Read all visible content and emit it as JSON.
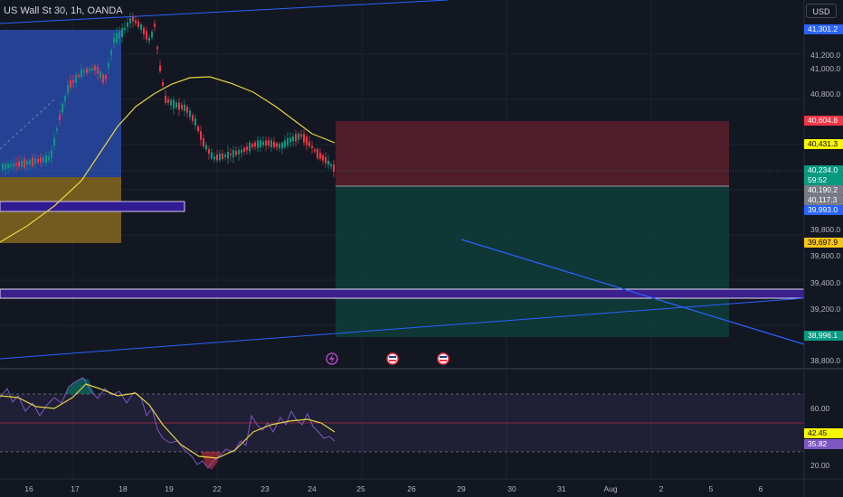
{
  "symbol": {
    "title": "US Wall St 30, 1h, OANDA"
  },
  "currency": {
    "label": "USD"
  },
  "price_axis": {
    "ticks": [
      "41,200.0",
      "41,000.0",
      "40,800.0",
      "39,800.0",
      "39,600.0",
      "39,400.0",
      "39,200.0",
      "38,800.0"
    ],
    "tags": [
      {
        "text": "41,301.2",
        "bg": "#2962ff",
        "fg": "#ffffff"
      },
      {
        "text": "40,604.8",
        "bg": "#f23645",
        "fg": "#ffffff"
      },
      {
        "text": "40,431.3",
        "bg": "#f7f700",
        "fg": "#000000"
      },
      {
        "text": "40,234.0",
        "bg": "#089981",
        "fg": "#ffffff"
      },
      {
        "text": "59:52",
        "bg": "#089981",
        "fg": "#ffffff"
      },
      {
        "text": "40,190.2",
        "bg": "#787b86",
        "fg": "#ffffff"
      },
      {
        "text": "40,117.3",
        "bg": "#787b86",
        "fg": "#ffffff"
      },
      {
        "text": "39,993.0",
        "bg": "#2962ff",
        "fg": "#ffffff"
      },
      {
        "text": "39,697.9",
        "bg": "#f5c518",
        "fg": "#000000"
      },
      {
        "text": "38,996.1",
        "bg": "#089981",
        "fg": "#ffffff"
      }
    ]
  },
  "rsi_axis": {
    "ticks": [
      "60.00",
      "20.00"
    ],
    "tags": [
      {
        "text": "42.45",
        "bg": "#f7f700",
        "fg": "#000000"
      },
      {
        "text": "35.82",
        "bg": "#7e57c2",
        "fg": "#ffffff"
      }
    ]
  },
  "time_axis": {
    "labels": [
      "16",
      "17",
      "18",
      "19",
      "22",
      "23",
      "24",
      "25",
      "26",
      "29",
      "30",
      "31",
      "Aug",
      "2",
      "5",
      "6"
    ]
  },
  "event_icons": [
    "lightning-icon",
    "us-flag-icon",
    "us-flag-icon"
  ],
  "colors": {
    "bull": "#089981",
    "bear": "#f23645",
    "ma": "#e6d53f",
    "trendline": "#2962ff",
    "zone": "#7e57c2"
  }
}
